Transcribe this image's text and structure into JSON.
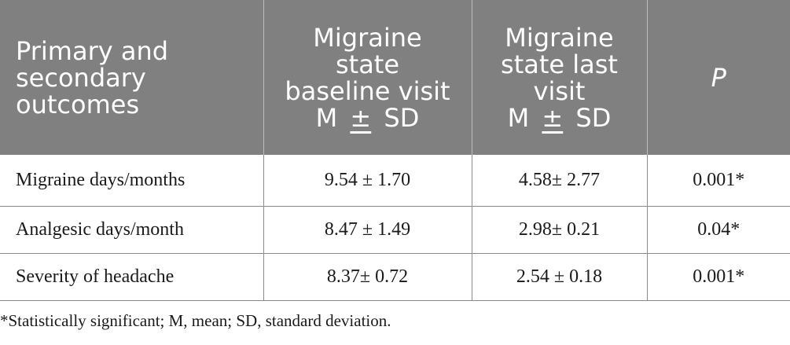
{
  "table": {
    "headers": {
      "col1": [
        "Primary and",
        "secondary",
        "outcomes"
      ],
      "col2": [
        "Migraine",
        "state",
        "baseline visit",
        "M",
        "±",
        "SD"
      ],
      "col3": [
        "Migraine",
        "state last",
        "visit",
        "M",
        "±",
        "SD"
      ],
      "col4": "P"
    },
    "rows": [
      {
        "outcome": "Migraine days/months",
        "baseline": "9.54 ± 1.70",
        "last": "4.58± 2.77",
        "p": "0.001*"
      },
      {
        "outcome": "Analgesic days/month",
        "baseline": "8.47 ± 1.49",
        "last": "2.98± 0.21",
        "p": "0.04*"
      },
      {
        "outcome": "Severity of headache",
        "baseline": "8.37± 0.72",
        "last": "2.54 ± 0.18",
        "p": "0.001*"
      }
    ],
    "header_bg": "#808080",
    "header_text_color": "#ffffff"
  },
  "footnote": "*Statistically significant; M, mean; SD, standard deviation."
}
